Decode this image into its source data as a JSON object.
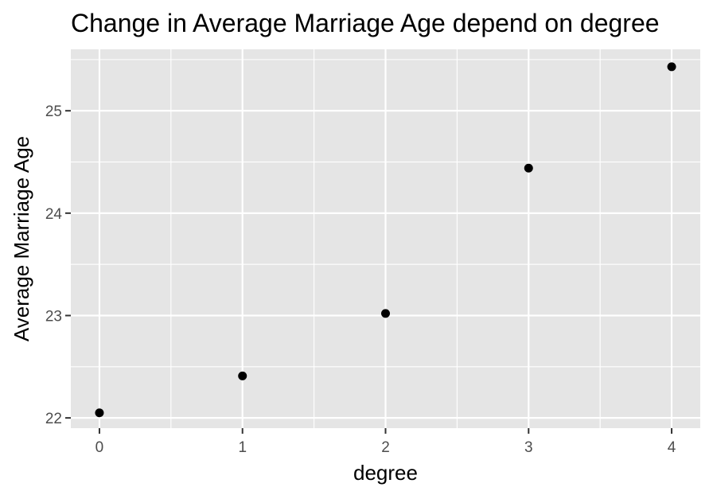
{
  "chart_data": {
    "type": "scatter",
    "title": "Change in Average Marriage Age depend on degree",
    "xlabel": "degree",
    "ylabel": "Average Marriage Age",
    "x": [
      0,
      1,
      2,
      3,
      4
    ],
    "y": [
      22.05,
      22.41,
      23.02,
      24.44,
      25.43
    ],
    "xlim": [
      -0.2,
      4.2
    ],
    "ylim": [
      21.9,
      25.6
    ],
    "x_ticks": [
      "0",
      "1",
      "2",
      "3",
      "4"
    ],
    "y_ticks": [
      "22",
      "23",
      "24",
      "25"
    ],
    "grid": true,
    "point_color": "#000000",
    "panel_color": "#e5e5e5",
    "grid_color": "#ffffff"
  }
}
